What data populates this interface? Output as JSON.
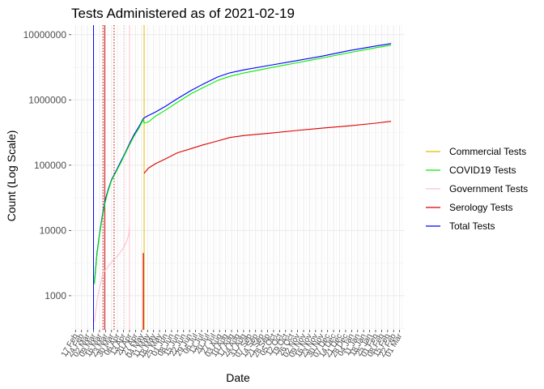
{
  "chart_data": {
    "type": "line",
    "title": "Tests Administered as of 2021-02-19",
    "xlabel": "Date",
    "ylabel": "Count (Log Scale)",
    "y_scale": "log10",
    "ylim": [
      300,
      14000000
    ],
    "xlim": [
      "2020-02-12",
      "2021-03-07"
    ],
    "grid": true,
    "legend_position": "right",
    "y_ticks": [
      {
        "value": 1000,
        "label": "1000"
      },
      {
        "value": 10000,
        "label": "10000"
      },
      {
        "value": 100000,
        "label": "100000"
      },
      {
        "value": 1000000,
        "label": "1000000"
      },
      {
        "value": 10000000,
        "label": "10000000"
      }
    ],
    "x_ticks": [
      {
        "date": "2020-02-17",
        "label": "17 Feb"
      },
      {
        "date": "2020-02-24",
        "label": "24 Feb"
      },
      {
        "date": "2020-03-02",
        "label": "02 Mar"
      },
      {
        "date": "2020-03-09",
        "label": "09 Mar"
      },
      {
        "date": "2020-03-16",
        "label": "16 Mar"
      },
      {
        "date": "2020-03-23",
        "label": "23 Mar"
      },
      {
        "date": "2020-03-30",
        "label": "30 Mar"
      },
      {
        "date": "2020-04-06",
        "label": "06 Apr"
      },
      {
        "date": "2020-04-13",
        "label": "13 Apr"
      },
      {
        "date": "2020-04-20",
        "label": "20 Apr"
      },
      {
        "date": "2020-04-27",
        "label": "27 Apr"
      },
      {
        "date": "2020-05-04",
        "label": "04 May"
      },
      {
        "date": "2020-05-11",
        "label": "11 May"
      },
      {
        "date": "2020-05-18",
        "label": "18 May"
      },
      {
        "date": "2020-05-25",
        "label": "25 May"
      },
      {
        "date": "2020-06-01",
        "label": "01 Jun"
      },
      {
        "date": "2020-06-08",
        "label": "08 Jun"
      },
      {
        "date": "2020-06-15",
        "label": "15 Jun"
      },
      {
        "date": "2020-06-22",
        "label": "22 Jun"
      },
      {
        "date": "2020-06-29",
        "label": "29 Jun"
      },
      {
        "date": "2020-07-06",
        "label": "06 Jul"
      },
      {
        "date": "2020-07-13",
        "label": "13 Jul"
      },
      {
        "date": "2020-07-20",
        "label": "20 Jul"
      },
      {
        "date": "2020-07-27",
        "label": "27 Jul"
      },
      {
        "date": "2020-08-03",
        "label": "03 Aug"
      },
      {
        "date": "2020-08-10",
        "label": "10 Aug"
      },
      {
        "date": "2020-08-17",
        "label": "17 Aug"
      },
      {
        "date": "2020-08-24",
        "label": "24 Aug"
      },
      {
        "date": "2020-08-31",
        "label": "31 Aug"
      },
      {
        "date": "2020-09-07",
        "label": "07 Sep"
      },
      {
        "date": "2020-09-14",
        "label": "14 Sep"
      },
      {
        "date": "2020-09-21",
        "label": "21 Sep"
      },
      {
        "date": "2020-09-28",
        "label": "28 Sep"
      },
      {
        "date": "2020-10-05",
        "label": "05 Oct"
      },
      {
        "date": "2020-10-12",
        "label": "12 Oct"
      },
      {
        "date": "2020-10-19",
        "label": "19 Oct"
      },
      {
        "date": "2020-10-26",
        "label": "26 Oct"
      },
      {
        "date": "2020-11-02",
        "label": "02 Nov"
      },
      {
        "date": "2020-11-09",
        "label": "09 Nov"
      },
      {
        "date": "2020-11-16",
        "label": "16 Nov"
      },
      {
        "date": "2020-11-23",
        "label": "23 Nov"
      },
      {
        "date": "2020-11-30",
        "label": "30 Nov"
      },
      {
        "date": "2020-12-07",
        "label": "07 Dec"
      },
      {
        "date": "2020-12-14",
        "label": "14 Dec"
      },
      {
        "date": "2020-12-21",
        "label": "21 Dec"
      },
      {
        "date": "2020-12-28",
        "label": "28 Dec"
      },
      {
        "date": "2021-01-04",
        "label": "04 Jan"
      },
      {
        "date": "2021-01-11",
        "label": "11 Jan"
      },
      {
        "date": "2021-01-18",
        "label": "18 Jan"
      },
      {
        "date": "2021-01-25",
        "label": "25 Jan"
      },
      {
        "date": "2021-02-01",
        "label": "01 Feb"
      },
      {
        "date": "2021-02-08",
        "label": "08 Feb"
      },
      {
        "date": "2021-02-15",
        "label": "15 Feb"
      },
      {
        "date": "2021-02-22",
        "label": "22 Feb"
      },
      {
        "date": "2021-03-01",
        "label": "01 Mar"
      }
    ],
    "vlines": [
      {
        "date": "2020-03-09",
        "color": "#0000ff",
        "style": "solid"
      },
      {
        "date": "2020-03-20",
        "color": "#cc0000",
        "style": "dotted"
      },
      {
        "date": "2020-03-22",
        "color": "#cc0000",
        "style": "solid"
      },
      {
        "date": "2020-04-02",
        "color": "#cc0000",
        "style": "dotted"
      },
      {
        "date": "2020-04-14",
        "color": "#ffc0cb",
        "style": "dotted"
      },
      {
        "date": "2020-04-20",
        "color": "#ffc0cb",
        "style": "solid"
      },
      {
        "date": "2020-05-07",
        "color": "#e6b800",
        "style": "solid"
      }
    ],
    "series": [
      {
        "name": "Total Tests",
        "color": "#0000ff",
        "points": [
          [
            "2020-03-10",
            1600
          ],
          [
            "2020-03-13",
            4500
          ],
          [
            "2020-03-16",
            9000
          ],
          [
            "2020-03-19",
            16000
          ],
          [
            "2020-03-22",
            27000
          ],
          [
            "2020-03-26",
            42000
          ],
          [
            "2020-03-30",
            60000
          ],
          [
            "2020-04-05",
            85000
          ],
          [
            "2020-04-10",
            115000
          ],
          [
            "2020-04-15",
            155000
          ],
          [
            "2020-04-20",
            215000
          ],
          [
            "2020-04-25",
            290000
          ],
          [
            "2020-05-01",
            390000
          ],
          [
            "2020-05-06",
            520000
          ],
          [
            "2020-05-10",
            560000
          ],
          [
            "2020-05-20",
            650000
          ],
          [
            "2020-06-01",
            800000
          ],
          [
            "2020-06-15",
            1050000
          ],
          [
            "2020-07-01",
            1400000
          ],
          [
            "2020-07-15",
            1750000
          ],
          [
            "2020-08-01",
            2250000
          ],
          [
            "2020-08-15",
            2600000
          ],
          [
            "2020-09-01",
            2900000
          ],
          [
            "2020-10-01",
            3400000
          ],
          [
            "2020-11-01",
            4000000
          ],
          [
            "2020-12-01",
            4700000
          ],
          [
            "2021-01-01",
            5700000
          ],
          [
            "2021-02-01",
            6700000
          ],
          [
            "2021-02-19",
            7300000
          ]
        ]
      },
      {
        "name": "COVID19 Tests",
        "color": "#00ee00",
        "points": [
          [
            "2020-03-10",
            1500
          ],
          [
            "2020-03-13",
            4200
          ],
          [
            "2020-03-16",
            8600
          ],
          [
            "2020-03-19",
            15000
          ],
          [
            "2020-03-22",
            25000
          ],
          [
            "2020-03-26",
            40000
          ],
          [
            "2020-03-30",
            58000
          ],
          [
            "2020-04-05",
            82000
          ],
          [
            "2020-04-10",
            110000
          ],
          [
            "2020-04-15",
            150000
          ],
          [
            "2020-04-20",
            205000
          ],
          [
            "2020-04-25",
            275000
          ],
          [
            "2020-05-01",
            370000
          ],
          [
            "2020-05-06",
            500000
          ],
          [
            "2020-05-07",
            440000
          ],
          [
            "2020-05-12",
            460000
          ],
          [
            "2020-05-20",
            560000
          ],
          [
            "2020-06-01",
            700000
          ],
          [
            "2020-06-15",
            920000
          ],
          [
            "2020-07-01",
            1250000
          ],
          [
            "2020-07-15",
            1550000
          ],
          [
            "2020-08-01",
            2000000
          ],
          [
            "2020-08-15",
            2300000
          ],
          [
            "2020-09-01",
            2600000
          ],
          [
            "2020-10-01",
            3100000
          ],
          [
            "2020-11-01",
            3700000
          ],
          [
            "2020-12-01",
            4400000
          ],
          [
            "2021-01-01",
            5300000
          ],
          [
            "2021-02-01",
            6300000
          ],
          [
            "2021-02-19",
            6900000
          ]
        ]
      },
      {
        "name": "Government Tests",
        "color": "#ffc0cb",
        "points": [
          [
            "2020-03-10",
            400
          ],
          [
            "2020-03-14",
            1000
          ],
          [
            "2020-03-20",
            2200
          ],
          [
            "2020-03-26",
            2800
          ],
          [
            "2020-04-01",
            3500
          ],
          [
            "2020-04-07",
            4200
          ],
          [
            "2020-04-12",
            5200
          ],
          [
            "2020-04-16",
            6500
          ],
          [
            "2020-04-19",
            8500
          ],
          [
            "2020-04-20",
            12000
          ]
        ]
      },
      {
        "name": "Serology Tests",
        "color": "#dd0000",
        "points": [
          [
            "2020-05-07",
            75000
          ],
          [
            "2020-05-12",
            90000
          ],
          [
            "2020-05-20",
            105000
          ],
          [
            "2020-06-01",
            125000
          ],
          [
            "2020-06-15",
            155000
          ],
          [
            "2020-07-01",
            180000
          ],
          [
            "2020-07-15",
            205000
          ],
          [
            "2020-08-01",
            235000
          ],
          [
            "2020-08-15",
            265000
          ],
          [
            "2020-09-01",
            285000
          ],
          [
            "2020-10-01",
            310000
          ],
          [
            "2020-11-01",
            340000
          ],
          [
            "2020-12-01",
            370000
          ],
          [
            "2021-01-01",
            400000
          ],
          [
            "2021-02-01",
            440000
          ],
          [
            "2021-02-19",
            470000
          ]
        ]
      },
      {
        "name": "Commercial Tests",
        "color": "#e6b800",
        "points": []
      }
    ],
    "legend": [
      {
        "name": "Commercial Tests",
        "color": "#e6b800"
      },
      {
        "name": "COVID19 Tests",
        "color": "#00ee00"
      },
      {
        "name": "Government Tests",
        "color": "#ffc0cb"
      },
      {
        "name": "Serology Tests",
        "color": "#dd0000"
      },
      {
        "name": "Total Tests",
        "color": "#0000ff"
      }
    ]
  }
}
